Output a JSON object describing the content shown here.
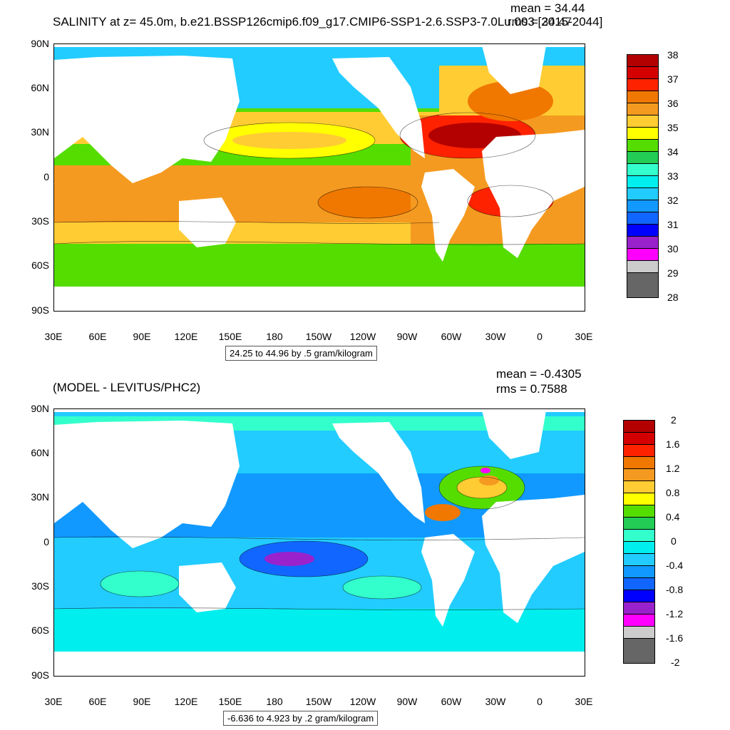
{
  "top": {
    "title": "SALINITY at z=  45.0m, b.e21.BSSP126cmip6.f09_g17.CMIP6-SSP1-2.6.SSP3-7.0Lu.003 [2015-2044]",
    "mean": "mean = 34.44",
    "rms": "rms = 34.47",
    "range": "24.25 to 44.96 by .5 gram/kilogram",
    "lat_labels": [
      "90N",
      "60N",
      "30N",
      "0",
      "30S",
      "60S",
      "90S"
    ],
    "lon_labels": [
      "30E",
      "60E",
      "90E",
      "120E",
      "150E",
      "180",
      "150W",
      "120W",
      "90W",
      "60W",
      "30W",
      "0",
      "30E"
    ],
    "colorbar_labels": [
      "38",
      "37",
      "36",
      "35",
      "34",
      "33",
      "32",
      "31",
      "30",
      "29",
      "28"
    ],
    "colorbar_colors": [
      "#b30000",
      "#d40000",
      "#ff2200",
      "#f07800",
      "#f59a20",
      "#ffcc33",
      "#ffff00",
      "#55dd00",
      "#22cc55",
      "#33ffcc",
      "#00eeee",
      "#22ccff",
      "#1199ff",
      "#1166ff",
      "#0000ff",
      "#9922cc",
      "#ff00ff",
      "#cccccc",
      "#666666"
    ]
  },
  "bottom": {
    "title": "(MODEL - LEVITUS/PHC2)",
    "mean": "mean = -0.4305",
    "rms": "rms = 0.7588",
    "range": "-6.636 to 4.923 by .2 gram/kilogram",
    "lat_labels": [
      "90N",
      "60N",
      "30N",
      "0",
      "30S",
      "60S",
      "90S"
    ],
    "lon_labels": [
      "30E",
      "60E",
      "90E",
      "120E",
      "150E",
      "180",
      "150W",
      "120W",
      "90W",
      "60W",
      "30W",
      "0",
      "30E"
    ],
    "colorbar_labels": [
      "2",
      "1.6",
      "1.2",
      "0.8",
      "0.4",
      "0",
      "-0.4",
      "-0.8",
      "-1.2",
      "-1.6",
      "-2"
    ],
    "colorbar_colors": [
      "#b30000",
      "#d40000",
      "#ff2200",
      "#f07800",
      "#f59a20",
      "#ffcc33",
      "#ffff00",
      "#55dd00",
      "#22cc55",
      "#33ffcc",
      "#00eeee",
      "#22ccff",
      "#1199ff",
      "#1166ff",
      "#0000ff",
      "#9922cc",
      "#ff00ff",
      "#cccccc",
      "#666666"
    ]
  },
  "colors": {
    "land": "#ffffff",
    "frame": "#000000"
  }
}
